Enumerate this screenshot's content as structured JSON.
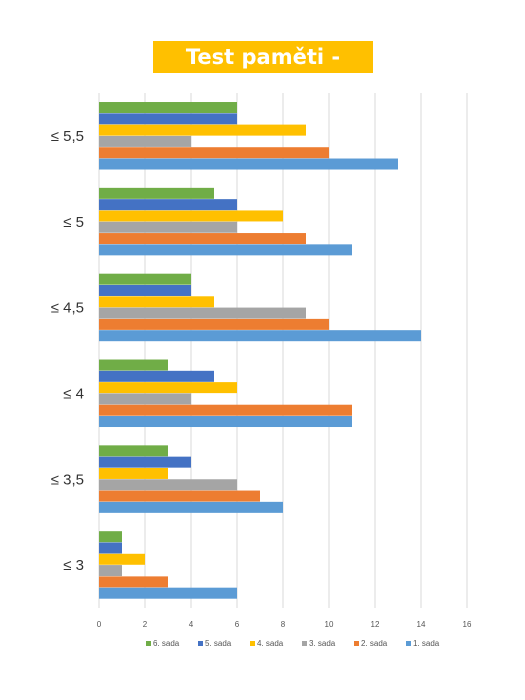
{
  "chart_data": {
    "type": "bar",
    "orientation": "horizontal",
    "title": "Test paměti - výsledky",
    "xlabel": "",
    "ylabel": "",
    "categories": [
      "≤ 3",
      "≤ 3,5",
      "≤ 4",
      "≤ 4,5",
      "≤ 5",
      "≤ 5,5"
    ],
    "xlim": [
      0,
      16
    ],
    "xticks": [
      0,
      2,
      4,
      6,
      8,
      10,
      12,
      14,
      16
    ],
    "grid": true,
    "legend_position": "bottom",
    "series": [
      {
        "name": "1. sada",
        "color": "#5B9BD5",
        "values": [
          6,
          8,
          11,
          14,
          11,
          13
        ]
      },
      {
        "name": "2. sada",
        "color": "#ED7D31",
        "values": [
          3,
          7,
          11,
          10,
          9,
          10
        ]
      },
      {
        "name": "3. sada",
        "color": "#A5A5A5",
        "values": [
          1,
          6,
          4,
          9,
          6,
          4
        ]
      },
      {
        "name": "4. sada",
        "color": "#FFC000",
        "values": [
          2,
          3,
          6,
          5,
          8,
          9
        ]
      },
      {
        "name": "5. sada",
        "color": "#4472C4",
        "values": [
          1,
          4,
          5,
          4,
          6,
          6
        ]
      },
      {
        "name": "6. sada",
        "color": "#70AD47",
        "values": [
          1,
          3,
          3,
          4,
          5,
          6
        ]
      }
    ],
    "colors": {
      "title_background": "#FFC000",
      "gridline": "#D9D9D9"
    }
  }
}
